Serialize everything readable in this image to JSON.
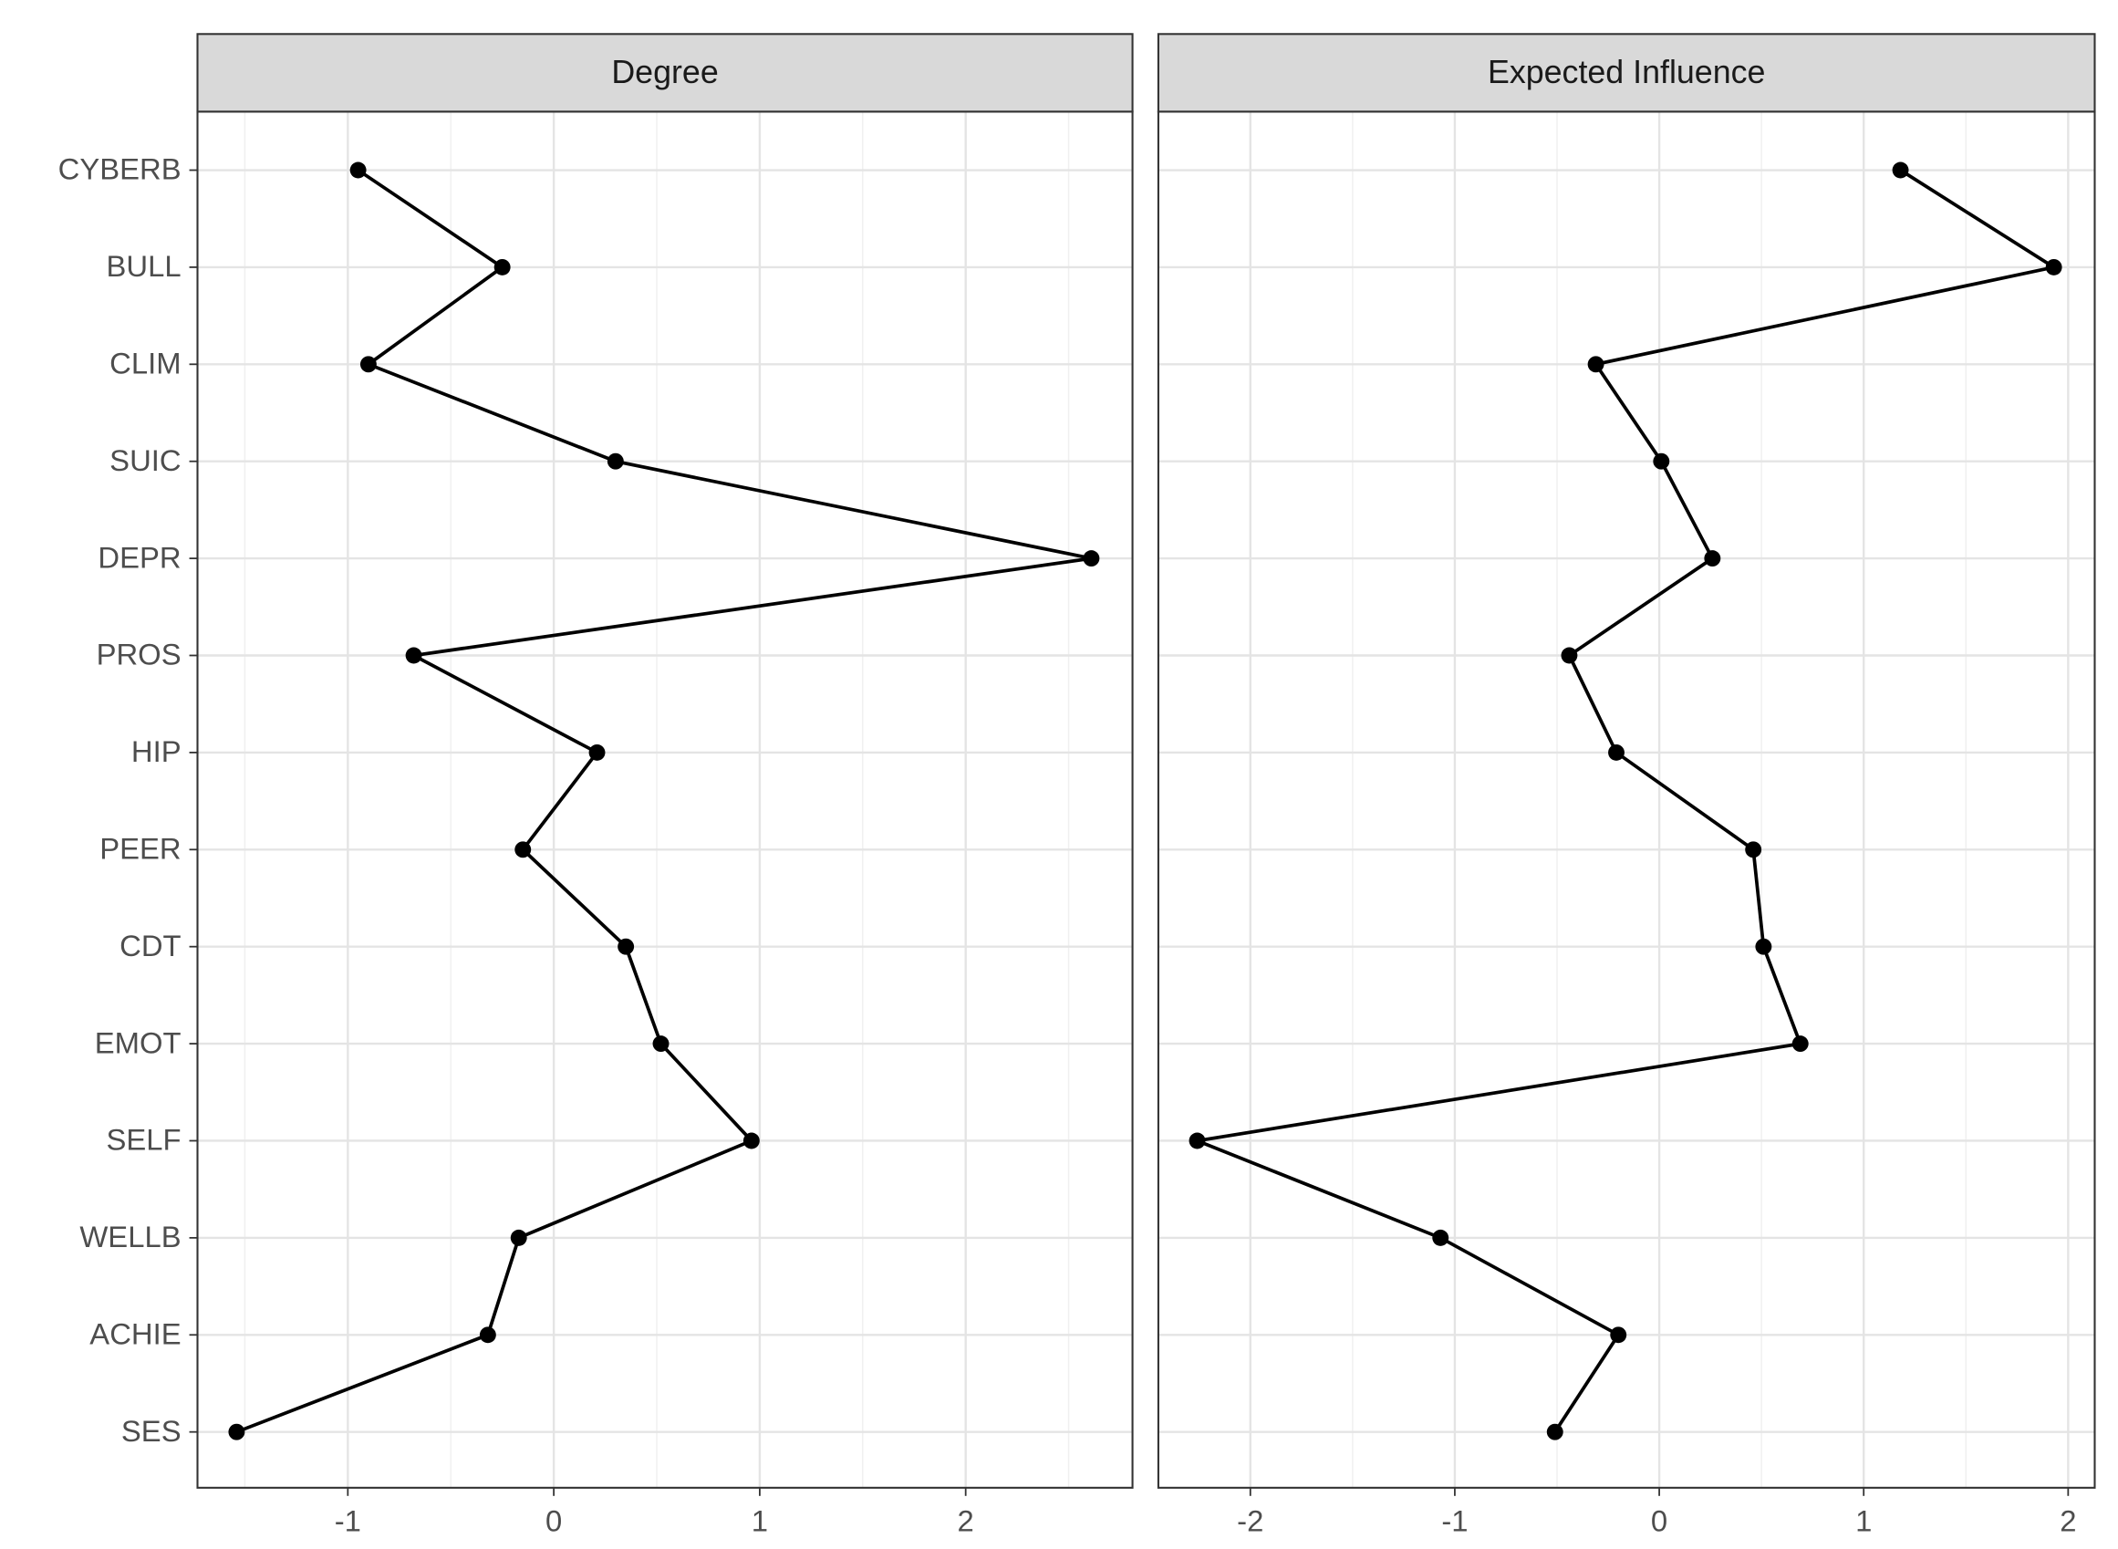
{
  "chart_data": [
    {
      "type": "line",
      "title": "Degree",
      "categories": [
        "CYBERB",
        "BULL",
        "CLIM",
        "SUIC",
        "DEPR",
        "PROS",
        "HIP",
        "PEER",
        "CDT",
        "EMOT",
        "SELF",
        "WELLB",
        "ACHIE",
        "SES"
      ],
      "values": [
        -0.95,
        -0.25,
        -0.9,
        0.3,
        2.61,
        -0.68,
        0.21,
        -0.15,
        0.35,
        0.52,
        0.96,
        -0.17,
        -0.32,
        -1.54
      ],
      "color": "#000000",
      "xlim": [
        -1.73,
        2.81
      ],
      "xticks": [
        -1,
        0,
        1,
        2
      ],
      "grid": true
    },
    {
      "type": "line",
      "title": "Expected Influence",
      "values": [
        1.18,
        1.93,
        -0.31,
        0.01,
        0.26,
        -0.44,
        -0.21,
        0.46,
        0.51,
        0.69,
        -2.26,
        -1.07,
        -0.2,
        -0.51
      ],
      "color": "#000000",
      "xlim": [
        -2.45,
        2.13
      ],
      "xticks": [
        -2,
        -1,
        0,
        1,
        2
      ],
      "grid": true
    }
  ]
}
